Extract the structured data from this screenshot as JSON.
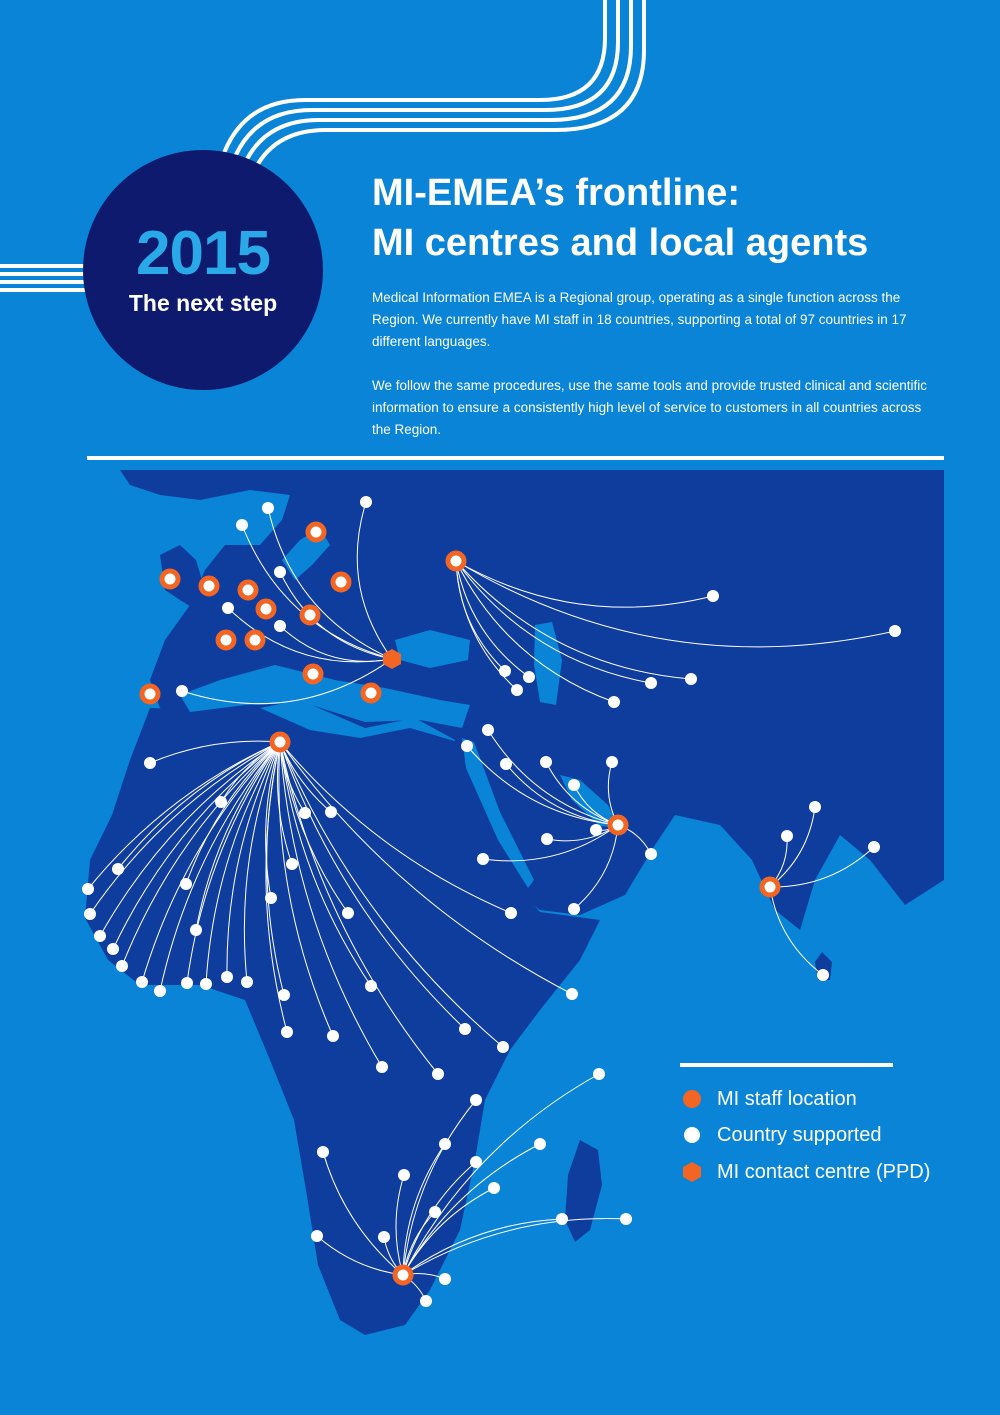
{
  "badge": {
    "year": "2015",
    "caption": "The next step"
  },
  "title": {
    "line1": "MI-EMEA’s frontline:",
    "line2": "MI centres and local agents"
  },
  "intro": {
    "paragraph1": "Medical Information EMEA is a Regional group, operating as a single function across the Region. We currently have MI staff in 18 countries, supporting a total of 97 countries in 17 different languages.",
    "paragraph2": "We follow the same procedures, use the same tools and provide trusted clinical and scientific information to ensure a consistently high level of service to customers in all countries across the Region."
  },
  "legend": {
    "staff": "MI staff location",
    "country": "Country supported",
    "centre": "MI contact centre (PPD)"
  },
  "colors": {
    "background": "#0a84d6",
    "land": "#0f3d9e",
    "navy": "#0d1a6e",
    "staff_marker": "#f26522",
    "country_marker": "#ffffff",
    "accent_blue": "#29a9e8"
  }
}
